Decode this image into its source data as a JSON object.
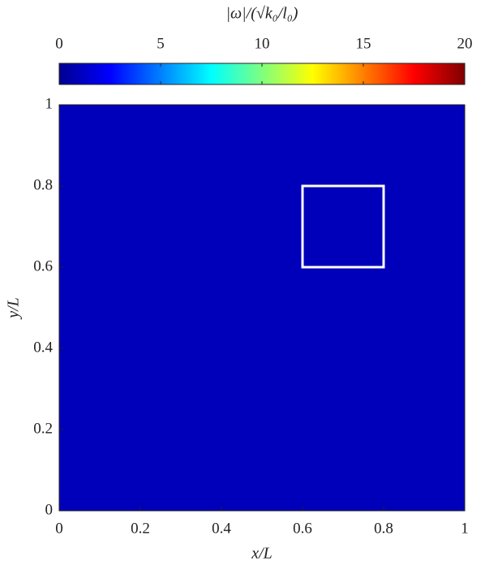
{
  "chart_data": {
    "type": "heatmap",
    "xlabel": "x/L",
    "ylabel": "y/L",
    "xlim": [
      0,
      1
    ],
    "ylim": [
      0,
      1
    ],
    "xticks": [
      0,
      0.2,
      0.4,
      0.6,
      0.8,
      1
    ],
    "yticks": [
      0,
      0.2,
      0.4,
      0.6,
      0.8,
      1
    ],
    "colormap": "jet",
    "colorbar": {
      "label": "|ω|/(√k₀/l₀)",
      "lim": [
        0,
        20
      ],
      "ticks": [
        0,
        5,
        10,
        15,
        20
      ]
    },
    "box": {
      "x": [
        0.6,
        0.8
      ],
      "y": [
        0.6,
        0.8
      ],
      "color": "#ffffff"
    }
  }
}
